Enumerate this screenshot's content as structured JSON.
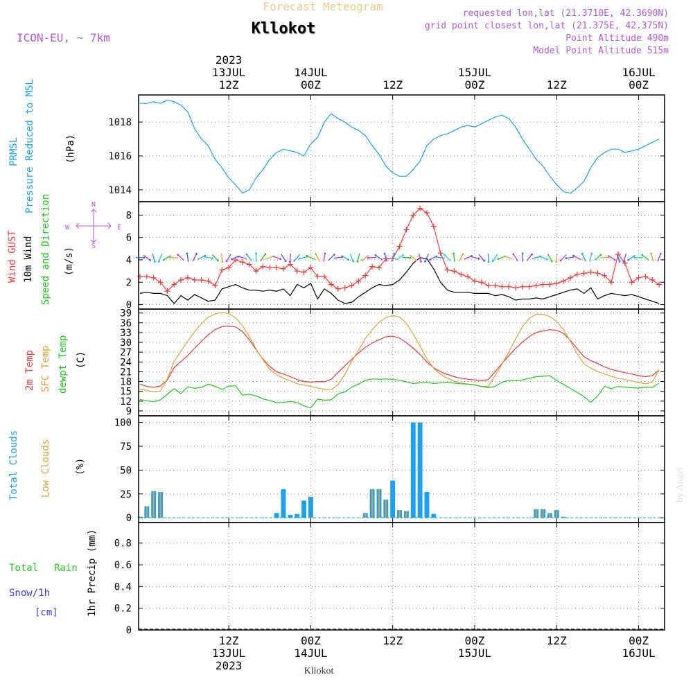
{
  "header": {
    "product": "Forecast Meteogram",
    "station": "Kllokot",
    "model": "ICON-EU, ~ 7km",
    "requested": "requested lon,lat (21.3710E, 42.3690N)",
    "gridpoint": "grid point closest lon,lat (21.375E, 42.375N)",
    "point_altitude": "Point Altitude 490m",
    "model_altitude": "Model Point Altitude 515m",
    "footer_station": "Kllokot",
    "watermark": "by Angel"
  },
  "time_axis": {
    "ticks": [
      {
        "t": 13,
        "top": [
          "2023",
          "13JUL",
          "12Z"
        ],
        "bottom": [
          "12Z",
          "13JUL",
          "2023"
        ]
      },
      {
        "t": 25,
        "top": [
          "14JUL",
          "00Z"
        ],
        "bottom": [
          "00Z",
          "14JUL"
        ]
      },
      {
        "t": 37,
        "top": [
          "12Z"
        ],
        "bottom": [
          "12Z"
        ]
      },
      {
        "t": 49,
        "top": [
          "15JUL",
          "00Z"
        ],
        "bottom": [
          "00Z",
          "15JUL"
        ]
      },
      {
        "t": 61,
        "top": [
          "12Z"
        ],
        "bottom": [
          "12Z"
        ]
      },
      {
        "t": 73,
        "top": [
          "16JUL",
          "00Z"
        ],
        "bottom": [
          "00Z",
          "16JUL"
        ]
      }
    ],
    "range_hours": [
      -0.2,
      76.8
    ]
  },
  "colors": {
    "pressure": "#1ea0ef",
    "gust": "#ef3c3c",
    "wind": "#000000",
    "temp2m": "#e23c3c",
    "sfc": "#dca43c",
    "dewpt": "#1ec81e",
    "total_clouds": "#1ea0ef",
    "low_clouds": "#dca43c",
    "rain": "#1ec81e",
    "snow": "#3c3cef",
    "header_purple": "#b05ad8",
    "header_tan": "#f0c890"
  },
  "panels": {
    "pressure": {
      "labels": [
        "PRMSL",
        "Pressure Reduced to MSL"
      ],
      "unit": "(hPa)"
    },
    "wind": {
      "labels": [
        "Wind GUST",
        "10m Wind",
        "Speed and Direction"
      ],
      "unit": "(m/s)",
      "compass": [
        "N",
        "E",
        "S",
        "W"
      ]
    },
    "temp": {
      "labels": [
        "2m Temp",
        "SFC Temp",
        "dewpt Temp"
      ],
      "unit": "(C)"
    },
    "clouds": {
      "labels": [
        "Total Clouds",
        "Low Clouds"
      ],
      "unit": "(%)"
    },
    "precip": {
      "labels": [
        "Total",
        "Rain",
        "Snow/1h",
        "[cm]"
      ],
      "unit": "1hr Precip (mm)"
    }
  },
  "chart_data": [
    {
      "type": "line",
      "title": "PRMSL Pressure Reduced to MSL",
      "ylabel": "(hPa)",
      "ylim": [
        1013.3,
        1019.6
      ],
      "yticks": [
        1014,
        1016,
        1018
      ],
      "grid": true,
      "x": [
        0,
        1,
        2,
        3,
        4,
        5,
        6,
        7,
        8,
        9,
        10,
        11,
        12,
        13,
        14,
        15,
        16,
        17,
        18,
        19,
        20,
        21,
        22,
        23,
        24,
        25,
        26,
        27,
        28,
        29,
        30,
        31,
        32,
        33,
        34,
        35,
        36,
        37,
        38,
        39,
        40,
        41,
        42,
        43,
        44,
        45,
        46,
        47,
        48,
        49,
        50,
        51,
        52,
        53,
        54,
        55,
        56,
        57,
        58,
        59,
        60,
        61,
        62,
        63,
        64,
        65,
        66,
        67,
        68,
        69,
        70,
        71,
        72,
        73,
        74,
        75,
        76
      ],
      "series": [
        {
          "name": "PRMSL",
          "values": [
            1019.1,
            1019.1,
            1019.2,
            1019.1,
            1019.3,
            1019.2,
            1019.0,
            1018.6,
            1017.6,
            1017.0,
            1016.6,
            1015.8,
            1015.3,
            1014.7,
            1014.3,
            1013.8,
            1014.0,
            1014.7,
            1015.2,
            1015.8,
            1016.2,
            1016.4,
            1016.3,
            1016.2,
            1016.0,
            1016.7,
            1017.1,
            1018.0,
            1018.5,
            1018.2,
            1018.0,
            1017.7,
            1017.5,
            1017.2,
            1016.6,
            1016.1,
            1015.4,
            1015.0,
            1014.8,
            1014.8,
            1015.2,
            1015.7,
            1016.6,
            1017.0,
            1017.2,
            1017.3,
            1017.5,
            1017.7,
            1017.8,
            1017.7,
            1017.9,
            1018.1,
            1018.3,
            1018.4,
            1018.2,
            1017.7,
            1017.0,
            1016.4,
            1015.8,
            1015.4,
            1014.8,
            1014.3,
            1013.9,
            1013.8,
            1014.1,
            1014.5,
            1015.3,
            1015.9,
            1016.2,
            1016.4,
            1016.4,
            1016.2,
            1016.3,
            1016.4,
            1016.6,
            1016.8,
            1017.0
          ]
        }
      ]
    },
    {
      "type": "line",
      "title": "Wind GUST, 10m Wind Speed and Direction",
      "ylabel": "(m/s)",
      "ylim": [
        -0.4,
        9.2
      ],
      "yticks": [
        0,
        2,
        4,
        6,
        8
      ],
      "grid": true,
      "x": [
        0,
        1,
        2,
        3,
        4,
        5,
        6,
        7,
        8,
        9,
        10,
        11,
        12,
        13,
        14,
        15,
        16,
        17,
        18,
        19,
        20,
        21,
        22,
        23,
        24,
        25,
        26,
        27,
        28,
        29,
        30,
        31,
        32,
        33,
        34,
        35,
        36,
        37,
        38,
        39,
        40,
        41,
        42,
        43,
        44,
        45,
        46,
        47,
        48,
        49,
        50,
        51,
        52,
        53,
        54,
        55,
        56,
        57,
        58,
        59,
        60,
        61,
        62,
        63,
        64,
        65,
        66,
        67,
        68,
        69,
        70,
        71,
        72,
        73,
        74,
        75,
        76
      ],
      "series": [
        {
          "name": "Wind GUST",
          "values": [
            2.5,
            2.5,
            2.4,
            2.0,
            1.2,
            1.8,
            2.2,
            2.4,
            2.2,
            2.2,
            2.1,
            1.7,
            3.1,
            3.3,
            4.0,
            3.8,
            3.6,
            3.0,
            3.4,
            3.3,
            3.3,
            3.2,
            3.6,
            3.0,
            2.9,
            3.3,
            2.5,
            2.5,
            1.8,
            1.4,
            1.5,
            1.7,
            2.1,
            2.6,
            3.4,
            3.3,
            4.1,
            4.1,
            5.2,
            6.7,
            8.0,
            8.6,
            8.2,
            7.0,
            4.6,
            3.1,
            3.0,
            2.7,
            2.5,
            2.1,
            2.0,
            1.7,
            1.7,
            1.6,
            1.6,
            1.5,
            1.6,
            1.6,
            1.7,
            1.8,
            1.8,
            1.9,
            2.1,
            2.4,
            2.7,
            2.8,
            2.9,
            2.8,
            2.6,
            2.0,
            4.5,
            3.7,
            2.0,
            2.4,
            2.5,
            2.2,
            1.8
          ]
        },
        {
          "name": "10m Wind",
          "values": [
            1.0,
            1.1,
            1.0,
            1.0,
            0.8,
            0.1,
            0.8,
            0.4,
            0.9,
            0.6,
            0.3,
            0.4,
            1.4,
            1.6,
            1.8,
            1.5,
            1.3,
            1.3,
            1.2,
            1.3,
            1.2,
            1.4,
            0.8,
            1.8,
            1.5,
            1.9,
            0.5,
            1.4,
            1.0,
            0.4,
            0.1,
            0.2,
            0.7,
            1.1,
            1.5,
            1.8,
            1.7,
            1.8,
            2.2,
            2.9,
            3.7,
            4.2,
            4.1,
            3.2,
            2.0,
            1.3,
            1.1,
            1.1,
            1.1,
            1.0,
            1.0,
            1.0,
            0.8,
            0.9,
            0.7,
            0.4,
            0.5,
            0.5,
            0.6,
            0.5,
            0.7,
            0.9,
            1.1,
            1.3,
            1.4,
            1.0,
            1.5,
            0.5,
            0.8,
            1.0,
            0.9,
            0.8,
            0.9,
            0.7,
            0.5,
            0.3,
            0.1
          ]
        }
      ]
    },
    {
      "type": "line",
      "title": "2m Temp, SFC Temp, dewpt Temp",
      "ylabel": "(C)",
      "ylim": [
        7.5,
        40.2
      ],
      "yticks": [
        9,
        12,
        15,
        18,
        21,
        24,
        27,
        30,
        33,
        36,
        39
      ],
      "grid": true,
      "x": [
        0,
        1,
        2,
        3,
        4,
        5,
        6,
        7,
        8,
        9,
        10,
        11,
        12,
        13,
        14,
        15,
        16,
        17,
        18,
        19,
        20,
        21,
        22,
        23,
        24,
        25,
        26,
        27,
        28,
        29,
        30,
        31,
        32,
        33,
        34,
        35,
        36,
        37,
        38,
        39,
        40,
        41,
        42,
        43,
        44,
        45,
        46,
        47,
        48,
        49,
        50,
        51,
        52,
        53,
        54,
        55,
        56,
        57,
        58,
        59,
        60,
        61,
        62,
        63,
        64,
        65,
        66,
        67,
        68,
        69,
        70,
        71,
        72,
        73,
        74,
        75,
        76
      ],
      "series": [
        {
          "name": "2m Temp",
          "values": [
            17.2,
            16.5,
            16.2,
            16.6,
            18.5,
            22.3,
            24.1,
            26.0,
            28.2,
            30.3,
            32.3,
            33.9,
            34.8,
            35.0,
            34.7,
            33.3,
            30.8,
            27.8,
            24.9,
            22.6,
            21.0,
            20.3,
            19.5,
            18.6,
            18.0,
            17.8,
            18.0,
            17.9,
            18.7,
            20.8,
            22.8,
            24.8,
            26.8,
            28.5,
            29.8,
            30.8,
            31.7,
            31.9,
            31.3,
            29.9,
            28.2,
            26.3,
            24.0,
            22.2,
            21.0,
            20.2,
            19.5,
            19.0,
            18.7,
            18.5,
            18.3,
            18.6,
            21.0,
            23.5,
            25.9,
            28.2,
            30.1,
            31.8,
            33.0,
            33.5,
            33.9,
            33.7,
            32.8,
            30.6,
            28.1,
            25.6,
            24.4,
            23.5,
            22.5,
            21.7,
            21.2,
            20.7,
            20.3,
            19.8,
            19.5,
            19.8,
            21.5
          ]
        },
        {
          "name": "SFC Temp",
          "values": [
            15.6,
            15.3,
            14.8,
            15.1,
            18.8,
            24.2,
            27.3,
            30.4,
            33.3,
            35.7,
            37.7,
            38.7,
            39.2,
            38.8,
            37.5,
            35.2,
            31.8,
            28.0,
            24.7,
            21.7,
            20.1,
            19.0,
            18.2,
            17.3,
            16.9,
            16.5,
            16.0,
            15.6,
            15.5,
            17.0,
            20.2,
            24.2,
            27.6,
            31.2,
            33.9,
            36.2,
            37.6,
            38.2,
            37.8,
            35.8,
            32.6,
            28.8,
            25.0,
            22.0,
            20.2,
            19.0,
            18.1,
            17.6,
            17.2,
            16.9,
            16.5,
            16.5,
            19.8,
            23.3,
            27.1,
            31.1,
            34.8,
            37.4,
            38.6,
            38.6,
            37.9,
            36.4,
            33.9,
            30.4,
            26.5,
            23.4,
            22.1,
            21.1,
            20.3,
            19.6,
            19.0,
            18.6,
            18.2,
            17.7,
            17.3,
            17.8,
            21.7
          ]
        },
        {
          "name": "dewpt Temp",
          "values": [
            12.5,
            12.1,
            11.8,
            12.4,
            14.1,
            15.8,
            14.3,
            16.4,
            15.9,
            16.2,
            17.2,
            16.5,
            15.6,
            16.6,
            16.7,
            13.8,
            14.1,
            13.6,
            12.7,
            12.2,
            11.5,
            11.6,
            11.9,
            11.6,
            10.6,
            9.9,
            12.6,
            12.3,
            12.4,
            14.2,
            14.8,
            16.3,
            17.2,
            18.4,
            18.8,
            18.7,
            18.8,
            18.7,
            18.4,
            17.9,
            17.4,
            17.6,
            17.8,
            17.4,
            17.6,
            17.8,
            17.5,
            17.3,
            17.2,
            17.0,
            16.5,
            16.1,
            16.5,
            17.8,
            18.3,
            18.3,
            18.5,
            19.0,
            19.5,
            19.6,
            19.8,
            18.3,
            17.1,
            15.9,
            14.7,
            13.4,
            11.6,
            13.6,
            16.5,
            15.8,
            16.5,
            16.3,
            16.1,
            16.0,
            16.3,
            16.2,
            17.5
          ]
        }
      ]
    },
    {
      "type": "bar",
      "title": "Total Clouds, Low Clouds",
      "ylabel": "(%)",
      "ylim": [
        -5,
        107
      ],
      "yticks": [
        0,
        25,
        50,
        75,
        100
      ],
      "grid": true,
      "x": [
        0,
        1,
        2,
        3,
        4,
        5,
        6,
        7,
        8,
        9,
        10,
        11,
        12,
        13,
        14,
        15,
        16,
        17,
        18,
        19,
        20,
        21,
        22,
        23,
        24,
        25,
        26,
        27,
        28,
        29,
        30,
        31,
        32,
        33,
        34,
        35,
        36,
        37,
        38,
        39,
        40,
        41,
        42,
        43,
        44,
        45,
        46,
        47,
        48,
        49,
        50,
        51,
        52,
        53,
        54,
        55,
        56,
        57,
        58,
        59,
        60,
        61,
        62,
        63,
        64,
        65,
        66,
        67,
        68,
        69,
        70,
        71,
        72,
        73,
        74,
        75,
        76
      ],
      "series": [
        {
          "name": "Total Clouds",
          "values": [
            1,
            12,
            28,
            27,
            0,
            0,
            0,
            0,
            0,
            0,
            0,
            0,
            0,
            0,
            0,
            0,
            0,
            0,
            0,
            0,
            5,
            30,
            3,
            4,
            18,
            22,
            0,
            0,
            0,
            0,
            0,
            0,
            0,
            5,
            30,
            30,
            19,
            39,
            8,
            7,
            100,
            100,
            27,
            4,
            0,
            0,
            0,
            0,
            0,
            0,
            0,
            0,
            0,
            0,
            0,
            0,
            0,
            0,
            9,
            9,
            5,
            8,
            1,
            0,
            0,
            0,
            0,
            0,
            0,
            0,
            0,
            0,
            0,
            0,
            0,
            0,
            0
          ]
        },
        {
          "name": "Low Clouds",
          "values": [
            0,
            12,
            28,
            27,
            0,
            0,
            0,
            0,
            0,
            0,
            0,
            0,
            0,
            0,
            0,
            0,
            0,
            0,
            0,
            0,
            0,
            0,
            0,
            0,
            0,
            0,
            0,
            0,
            0,
            0,
            0,
            0,
            0,
            5,
            30,
            30,
            19,
            0,
            8,
            7,
            0,
            0,
            0,
            0,
            0,
            0,
            0,
            0,
            0,
            0,
            0,
            0,
            0,
            0,
            0,
            0,
            0,
            0,
            9,
            9,
            5,
            8,
            0,
            0,
            0,
            0,
            0,
            0,
            0,
            0,
            0,
            0,
            0,
            0,
            0,
            0,
            0
          ]
        }
      ]
    },
    {
      "type": "bar",
      "title": "Total Rain, Snow/1h [cm]",
      "ylabel": "1hr Precip (mm)",
      "ylim": [
        0,
        0.99
      ],
      "yticks": [
        0,
        0.2,
        0.4,
        0.6,
        0.8
      ],
      "grid": true,
      "series": [
        {
          "name": "Total Rain",
          "values": []
        },
        {
          "name": "Snow/1h",
          "values": []
        }
      ]
    }
  ]
}
